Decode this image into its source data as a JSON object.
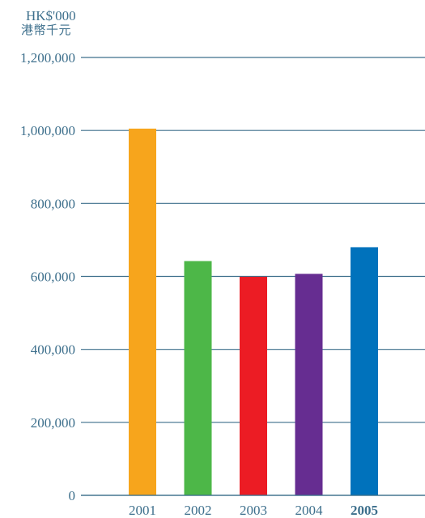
{
  "chart_data": {
    "type": "bar",
    "title": "",
    "unit_label_en": "HK$'000",
    "unit_label_zh": "港幣千元",
    "categories": [
      "2001",
      "2002",
      "2003",
      "2004",
      "2005"
    ],
    "values": [
      1005000,
      642000,
      599000,
      607000,
      680000
    ],
    "bar_colors": [
      "#f7a51c",
      "#4db748",
      "#ec1c24",
      "#662d91",
      "#0072bc"
    ],
    "bold_categories": [
      "2005"
    ],
    "ylim": [
      0,
      1200000
    ],
    "yticks": [
      0,
      200000,
      400000,
      600000,
      800000,
      1000000,
      1200000
    ],
    "ytick_labels": [
      "0",
      "200,000",
      "400,000",
      "600,000",
      "800,000",
      "1,000,000",
      "1,200,000"
    ],
    "grid": true,
    "xlabel": "",
    "ylabel": ""
  },
  "colors": {
    "axis": "#3d6f8c",
    "text": "#3d6f8c"
  }
}
